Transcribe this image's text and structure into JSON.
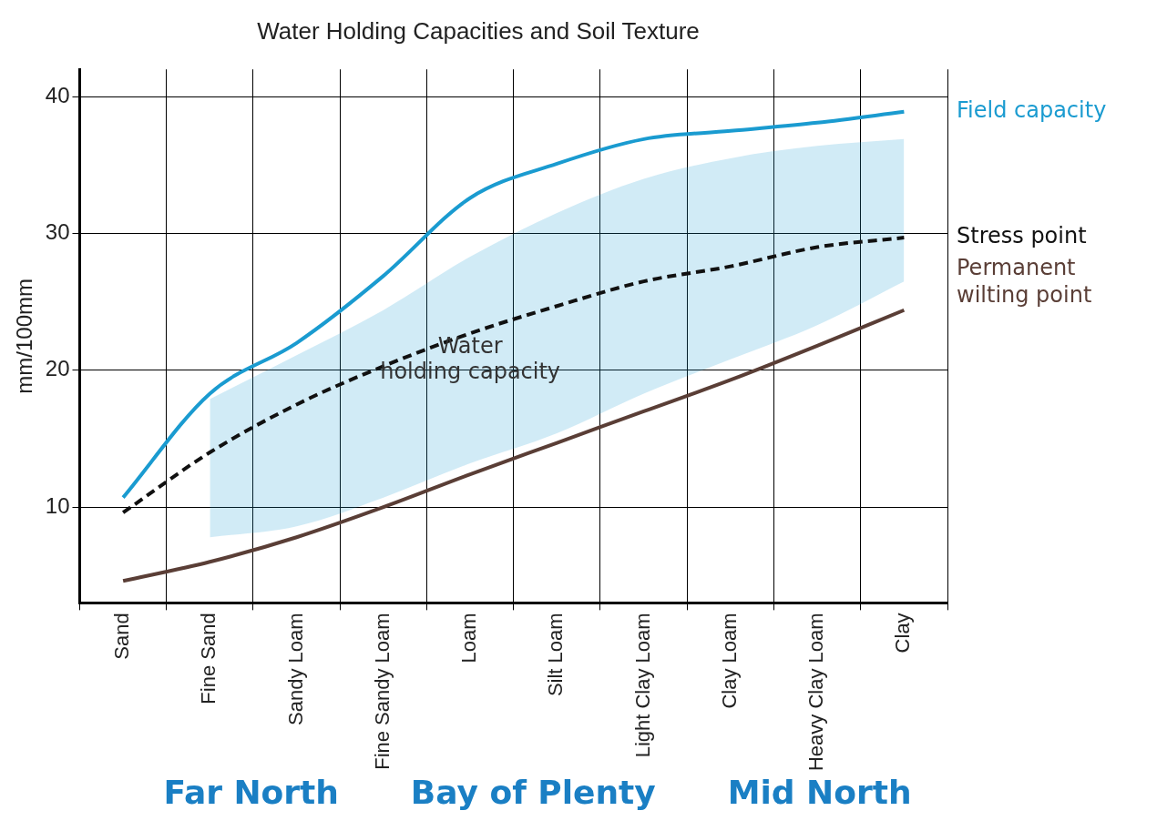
{
  "chart_data": {
    "type": "line",
    "title": "Water Holding Capacities and Soil Texture",
    "ylabel": "mm/100mm",
    "categories": [
      "Sand",
      "Fine Sand",
      "Sandy Loam",
      "Fine Sandy Loam",
      "Loam",
      "Silt Loam",
      "Light Clay Loam",
      "Clay Loam",
      "Heavy Clay Loam",
      "Clay"
    ],
    "series": [
      {
        "name": "Field capacity",
        "color": "#1a9bd0",
        "values": [
          10.7,
          18.3,
          22,
          26.9,
          32.6,
          35.1,
          36.9,
          37.5,
          38.1,
          38.9
        ],
        "lower": [
          null,
          7.8,
          8.6,
          10.7,
          13.2,
          15.4,
          18.3,
          20.8,
          23.3,
          26.5
        ],
        "upper": [
          null,
          17.9,
          21.1,
          24.4,
          28.3,
          31.5,
          34,
          35.5,
          36.4,
          36.9
        ]
      },
      {
        "name": "Stress point",
        "color": "#111111",
        "line_style": "dashed",
        "values": [
          9.6,
          14,
          17.5,
          20.3,
          22.7,
          24.7,
          26.5,
          27.6,
          29,
          29.7
        ]
      },
      {
        "name": "Permanent wilting point",
        "color": "#5a3e36",
        "values": [
          4.6,
          6,
          7.8,
          10,
          12.4,
          14.7,
          17,
          19.3,
          21.8,
          24.4
        ]
      }
    ],
    "ylim": [
      3,
      42
    ],
    "yticks": [
      10,
      20,
      30,
      40
    ],
    "grid": true,
    "legend": false,
    "marker": "none",
    "annotations": [
      "Water holding capacity",
      "Far North",
      "Bay of Plenty",
      "Mid North"
    ]
  }
}
